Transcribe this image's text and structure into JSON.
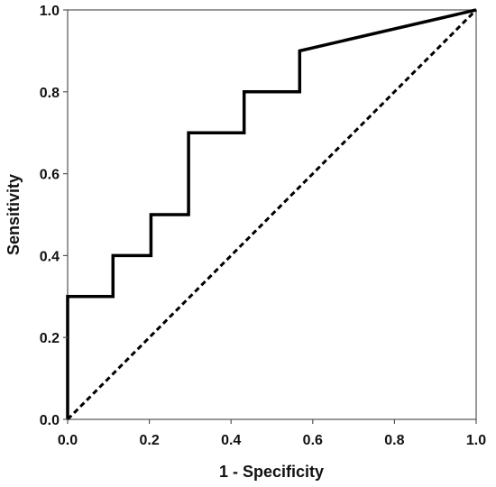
{
  "chart_data": {
    "type": "line",
    "title": "",
    "xlabel": "1 - Specificity",
    "ylabel": "Sensitivity",
    "xlim": [
      0.0,
      1.0
    ],
    "ylim": [
      0.0,
      1.0
    ],
    "grid": false,
    "legend": "none",
    "x_ticks": [
      "0.0",
      "0.2",
      "0.4",
      "0.6",
      "0.8",
      "1.0"
    ],
    "y_ticks": [
      "0.0",
      "0.2",
      "0.4",
      "0.6",
      "0.8",
      "1.0"
    ],
    "series": [
      {
        "style": "solid",
        "color": "#000000",
        "x": [
          0.0,
          0.0,
          0.111,
          0.111,
          0.204,
          0.204,
          0.296,
          0.296,
          0.432,
          0.432,
          0.568,
          0.568,
          1.0
        ],
        "y": [
          0.0,
          0.3,
          0.3,
          0.4,
          0.4,
          0.5,
          0.5,
          0.7,
          0.7,
          0.8,
          0.8,
          0.9,
          1.0
        ]
      },
      {
        "style": "dashed",
        "color": "#000000",
        "x": [
          0.0,
          1.0
        ],
        "y": [
          0.0,
          1.0
        ]
      }
    ]
  }
}
